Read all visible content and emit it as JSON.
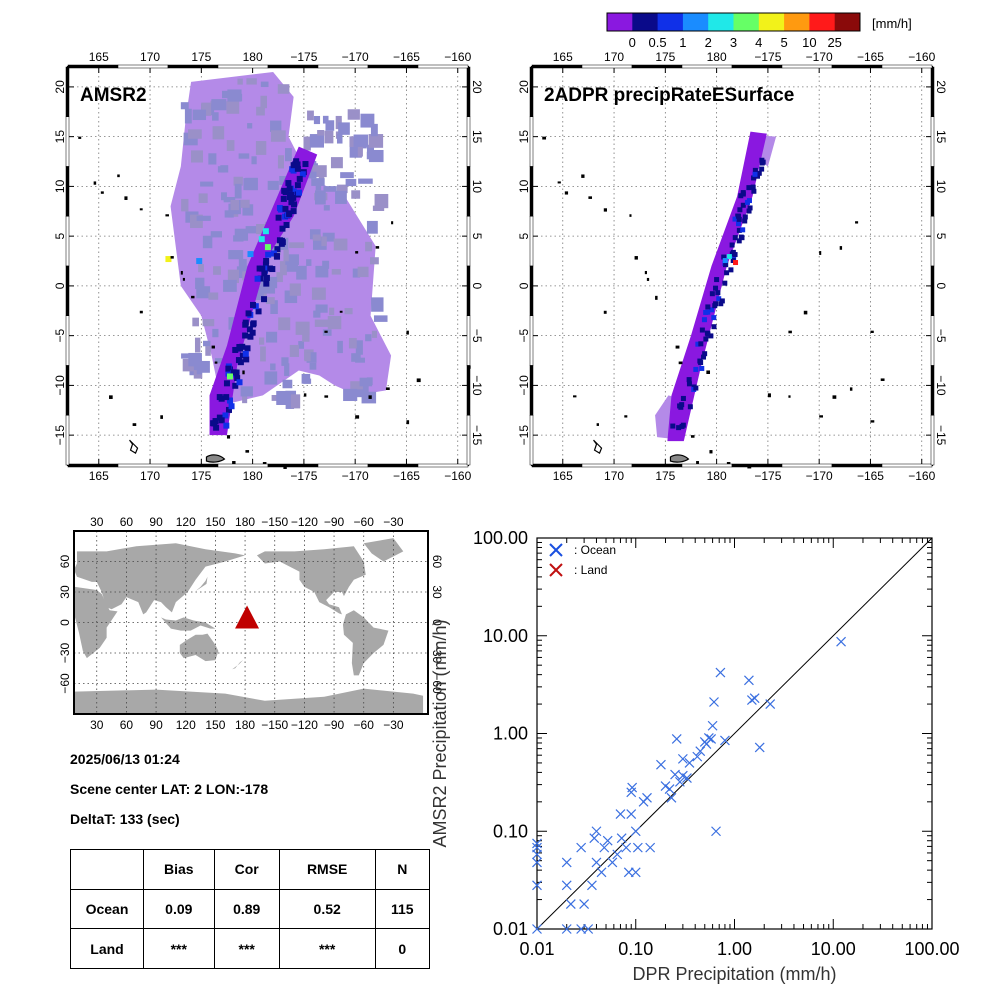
{
  "colorbar": {
    "unit": "[mm/h]",
    "labels": [
      "0",
      "0.5",
      "1",
      "2",
      "3",
      "4",
      "5",
      "10",
      "25"
    ],
    "colors": [
      "#8a18e0",
      "#0a0a8a",
      "#1030e8",
      "#1a8cff",
      "#20e8e8",
      "#66ff66",
      "#f2f21a",
      "#ff9a10",
      "#ff1a1a",
      "#8a0a0a"
    ]
  },
  "maps": [
    {
      "title": "AMSR2",
      "lon_ticks": [
        "165",
        "170",
        "175",
        "180",
        "−175",
        "−170",
        "−165",
        "−160"
      ],
      "lat_ticks": [
        "20",
        "15",
        "10",
        "5",
        "0",
        "−5",
        "−10",
        "−15"
      ]
    },
    {
      "title": "2ADPR precipRateESurface",
      "lon_ticks": [
        "165",
        "170",
        "175",
        "180",
        "−175",
        "−170",
        "−165",
        "−160"
      ],
      "lat_ticks": [
        "20",
        "15",
        "10",
        "5",
        "0",
        "−5",
        "−10",
        "−15"
      ]
    }
  ],
  "world_map": {
    "lon_ticks": [
      "30",
      "60",
      "90",
      "120",
      "150",
      "180",
      "−150",
      "−120",
      "−90",
      "−60",
      "−30"
    ],
    "lat_ticks": [
      "60",
      "30",
      "0",
      "−30",
      "−60"
    ],
    "marker_color": "#c00000"
  },
  "info": {
    "datetime": "2025/06/13 01:24",
    "scene_center": "Scene center LAT:  2   LON:-178",
    "delta_t": "DeltaT:  133 (sec)"
  },
  "stats_table": {
    "headers": [
      "",
      "Bias",
      "Cor",
      "RMSE",
      "N"
    ],
    "rows": [
      [
        "Ocean",
        "0.09",
        "0.89",
        "0.52",
        "115"
      ],
      [
        "Land",
        "***",
        "***",
        "***",
        "0"
      ]
    ]
  },
  "chart_data": {
    "type": "scatter",
    "xlabel": "DPR Precipitation (mm/h)",
    "ylabel": "AMSR2 Precipitation (mm/h)",
    "xscale": "log",
    "yscale": "log",
    "xlim": [
      0.01,
      100
    ],
    "ylim": [
      0.01,
      100
    ],
    "x_tick_labels": [
      "0.01",
      "0.10",
      "1.00",
      "10.00",
      "100.00"
    ],
    "y_tick_labels": [
      "0.01",
      "0.10",
      "1.00",
      "10.00",
      "100.00"
    ],
    "reference_line": "1:1",
    "legend": {
      "position": "top-left",
      "entries": [
        {
          "label": ": Ocean",
          "color": "#1a50e0"
        },
        {
          "label": ": Land",
          "color": "#c01010"
        }
      ]
    },
    "series": [
      {
        "name": ": Ocean",
        "color": "#3a6fe0",
        "points": [
          [
            0.01,
            0.01
          ],
          [
            0.01,
            0.028
          ],
          [
            0.01,
            0.048
          ],
          [
            0.01,
            0.058
          ],
          [
            0.01,
            0.068
          ],
          [
            0.01,
            0.075
          ],
          [
            0.02,
            0.01
          ],
          [
            0.02,
            0.028
          ],
          [
            0.02,
            0.048
          ],
          [
            0.022,
            0.018
          ],
          [
            0.028,
            0.01
          ],
          [
            0.028,
            0.068
          ],
          [
            0.03,
            0.018
          ],
          [
            0.033,
            0.01
          ],
          [
            0.036,
            0.028
          ],
          [
            0.038,
            0.085
          ],
          [
            0.04,
            0.1
          ],
          [
            0.04,
            0.048
          ],
          [
            0.045,
            0.038
          ],
          [
            0.048,
            0.068
          ],
          [
            0.052,
            0.08
          ],
          [
            0.058,
            0.048
          ],
          [
            0.065,
            0.058
          ],
          [
            0.07,
            0.15
          ],
          [
            0.072,
            0.085
          ],
          [
            0.08,
            0.068
          ],
          [
            0.085,
            0.038
          ],
          [
            0.09,
            0.15
          ],
          [
            0.09,
            0.25
          ],
          [
            0.092,
            0.28
          ],
          [
            0.1,
            0.1
          ],
          [
            0.1,
            0.038
          ],
          [
            0.105,
            0.068
          ],
          [
            0.12,
            0.2
          ],
          [
            0.13,
            0.22
          ],
          [
            0.14,
            0.068
          ],
          [
            0.18,
            0.48
          ],
          [
            0.2,
            0.29
          ],
          [
            0.22,
            0.27
          ],
          [
            0.23,
            0.22
          ],
          [
            0.25,
            0.38
          ],
          [
            0.26,
            0.88
          ],
          [
            0.28,
            0.32
          ],
          [
            0.3,
            0.55
          ],
          [
            0.3,
            0.37
          ],
          [
            0.33,
            0.35
          ],
          [
            0.35,
            0.5
          ],
          [
            0.42,
            0.58
          ],
          [
            0.45,
            0.66
          ],
          [
            0.5,
            0.82
          ],
          [
            0.52,
            0.78
          ],
          [
            0.55,
            0.9
          ],
          [
            0.58,
            0.88
          ],
          [
            0.6,
            1.2
          ],
          [
            0.62,
            2.1
          ],
          [
            0.65,
            0.1
          ],
          [
            0.72,
            4.2
          ],
          [
            0.8,
            0.85
          ],
          [
            1.4,
            3.5
          ],
          [
            1.5,
            2.2
          ],
          [
            1.6,
            2.3
          ],
          [
            1.8,
            0.72
          ],
          [
            2.3,
            2.0
          ],
          [
            12.0,
            8.7
          ]
        ]
      },
      {
        "name": ": Land",
        "color": "#c01010",
        "points": []
      }
    ]
  }
}
